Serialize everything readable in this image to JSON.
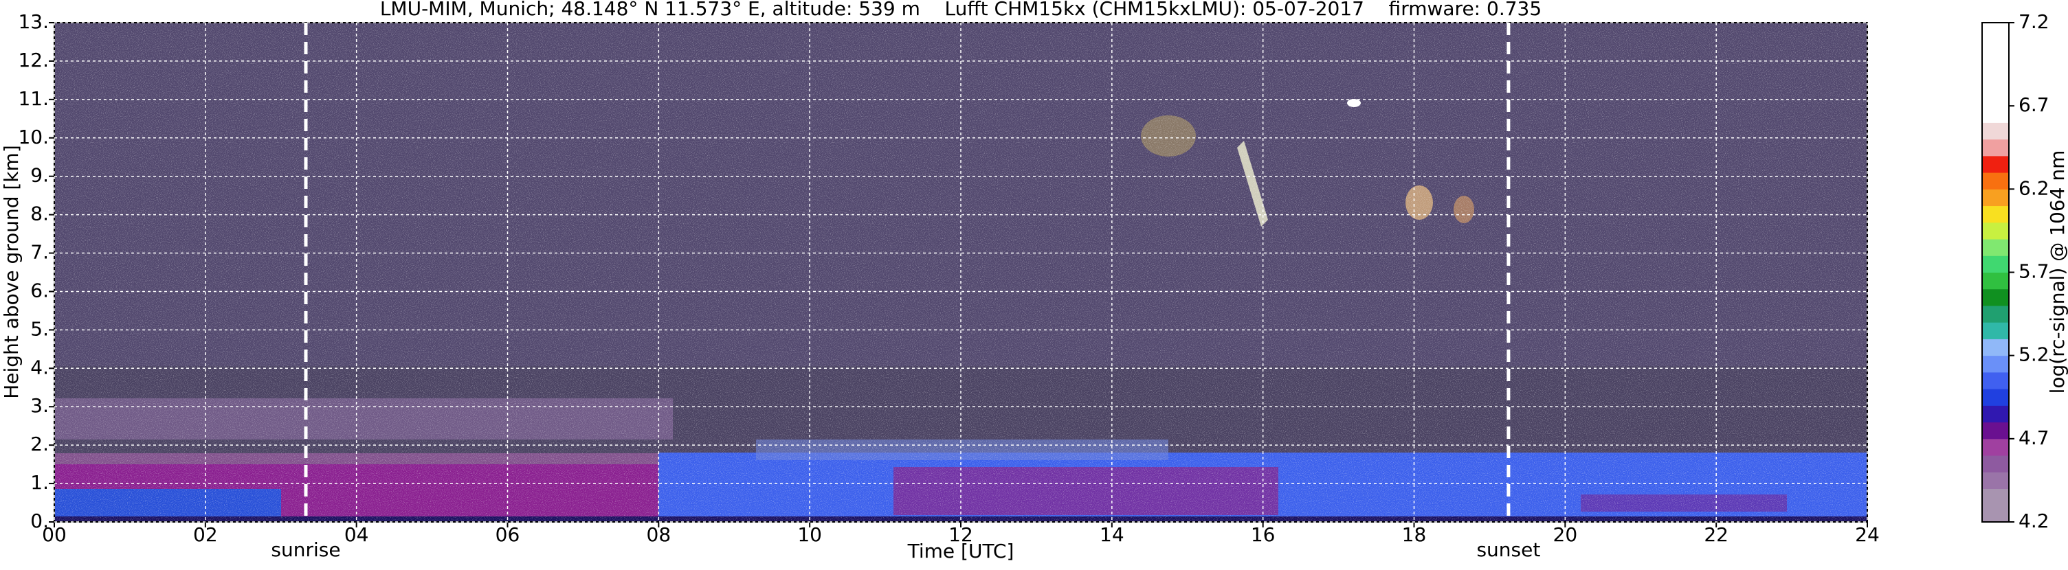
{
  "chart_data": {
    "type": "heatmap",
    "title": "LMU-MIM, Munich; 48.148° N 11.573° E, altitude: 539 m    Lufft CHM15kx (CHM15kxLMU): 05-07-2017    firmware: 0.735",
    "x_label": "Time [UTC]",
    "y_label": "Height above ground [km]",
    "xlim": [
      0,
      24
    ],
    "ylim": [
      0,
      13
    ],
    "xticks": [
      {
        "value": 0,
        "label": "00"
      },
      {
        "value": 2,
        "label": "02"
      },
      {
        "value": 4,
        "label": "04"
      },
      {
        "value": 6,
        "label": "06"
      },
      {
        "value": 8,
        "label": "08"
      },
      10,
      12,
      14,
      16,
      18,
      20,
      22,
      24
    ],
    "yticks": [
      {
        "value": 0,
        "label": "0."
      },
      {
        "value": 1,
        "label": "1."
      },
      {
        "value": 2,
        "label": "2."
      },
      {
        "value": 3,
        "label": "3."
      },
      {
        "value": 4,
        "label": "4."
      },
      {
        "value": 5,
        "label": "5."
      },
      {
        "value": 6,
        "label": "6."
      },
      {
        "value": 7,
        "label": "7."
      },
      {
        "value": 8,
        "label": "8."
      },
      {
        "value": 9,
        "label": "9."
      },
      {
        "value": 10,
        "label": "10."
      },
      {
        "value": 11,
        "label": "11."
      },
      {
        "value": 12,
        "label": "12."
      },
      {
        "value": 13,
        "label": "13."
      }
    ],
    "grid": true,
    "annotations": [
      {
        "label": "sunrise",
        "x": 3.33
      },
      {
        "label": "sunset",
        "x": 19.25
      }
    ],
    "colorbar": {
      "label": "log(rc-signal) @ 1064 nm",
      "lim": [
        4.2,
        7.2
      ],
      "ticks": [
        4.2,
        4.7,
        5.2,
        5.7,
        6.2,
        6.7,
        7.2
      ],
      "colors": [
        "#a894b0",
        "#a894b0",
        "#9a74a8",
        "#8e5aa0",
        "#a040a0",
        "#6a1090",
        "#3018b0",
        "#2040e0",
        "#4060f0",
        "#6a90f8",
        "#90b8f8",
        "#30b8a8",
        "#20a070",
        "#109020",
        "#30c040",
        "#40d870",
        "#80e870",
        "#c8f040",
        "#f8e020",
        "#f8a020",
        "#f87010",
        "#f02010",
        "#f0a0a0",
        "#f0d8d8",
        "#ffffff",
        "#ffffff",
        "#ffffff",
        "#ffffff",
        "#ffffff",
        "#ffffff"
      ]
    }
  }
}
